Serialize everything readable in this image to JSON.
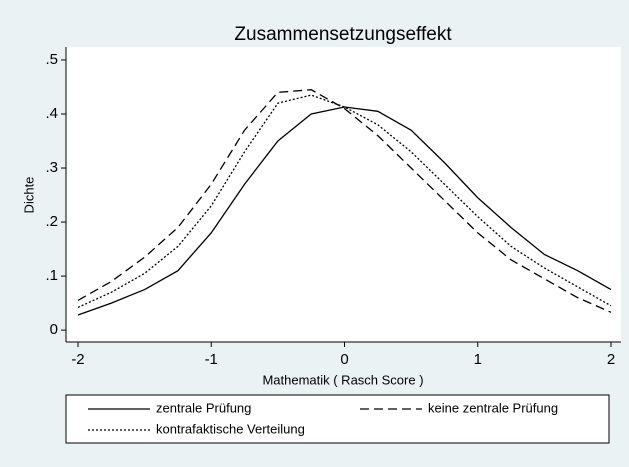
{
  "chart_data": {
    "type": "line",
    "title": "Zusammensetzungseffekt",
    "xlabel": "Mathematik ( Rasch Score )",
    "ylabel": "Dichte",
    "x": [
      -2,
      -1.75,
      -1.5,
      -1.25,
      -1,
      -0.75,
      -0.5,
      -0.25,
      0,
      0.25,
      0.5,
      0.75,
      1,
      1.25,
      1.5,
      1.75,
      2
    ],
    "series": [
      {
        "name": "zentrale Prüfung",
        "color": "#000000",
        "style": "solid",
        "values": [
          0.028,
          0.05,
          0.075,
          0.11,
          0.18,
          0.27,
          0.35,
          0.4,
          0.413,
          0.405,
          0.37,
          0.31,
          0.245,
          0.19,
          0.14,
          0.11,
          0.075
        ]
      },
      {
        "name": "keine zentrale Prüfung",
        "color": "#000000",
        "style": "dashed",
        "values": [
          0.055,
          0.09,
          0.135,
          0.19,
          0.27,
          0.37,
          0.44,
          0.445,
          0.41,
          0.36,
          0.3,
          0.24,
          0.18,
          0.13,
          0.095,
          0.06,
          0.033
        ]
      },
      {
        "name": "kontrafaktische Verteilung",
        "color": "#000000",
        "style": "dotted",
        "values": [
          0.042,
          0.07,
          0.105,
          0.155,
          0.23,
          0.33,
          0.42,
          0.435,
          0.413,
          0.38,
          0.33,
          0.27,
          0.21,
          0.155,
          0.115,
          0.08,
          0.045
        ]
      }
    ],
    "xlim": [
      -2.09,
      2.075
    ],
    "ylim": [
      -0.022,
      0.524
    ],
    "xticks": [
      -2,
      -1,
      0,
      1,
      2
    ],
    "yticks": [
      0,
      {
        "value": 0.1,
        "label": ".1"
      },
      {
        "value": 0.2,
        "label": ".2"
      },
      {
        "value": 0.3,
        "label": ".3"
      },
      {
        "value": 0.4,
        "label": ".4"
      },
      {
        "value": 0.5,
        "label": ".5"
      }
    ],
    "grid": false,
    "legend": "bottom"
  }
}
